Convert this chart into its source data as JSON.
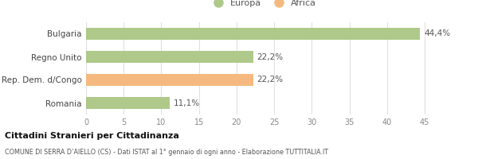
{
  "categories": [
    "Bulgaria",
    "Regno Unito",
    "Rep. Dem. d/Congo",
    "Romania"
  ],
  "values": [
    44.4,
    22.2,
    22.2,
    11.1
  ],
  "colors": [
    "#aec98a",
    "#aec98a",
    "#f5b97f",
    "#aec98a"
  ],
  "labels": [
    "44,4%",
    "22,2%",
    "22,2%",
    "11,1%"
  ],
  "xlim": [
    0,
    47
  ],
  "xticks": [
    0,
    5,
    10,
    15,
    20,
    25,
    30,
    35,
    40,
    45
  ],
  "legend_europa_color": "#aec98a",
  "legend_africa_color": "#f5b97f",
  "title_bold": "Cittadini Stranieri per Cittadinanza",
  "title_sub": "COMUNE DI SERRA D’AIELLO (CS) - Dati ISTAT al 1° gennaio di ogni anno - Elaborazione TUTTITALIA.IT",
  "bar_height": 0.55,
  "background_color": "#ffffff",
  "grid_color": "#e0e0e0",
  "label_fontsize": 7.5,
  "tick_fontsize": 7,
  "ylabel_fontsize": 7.5,
  "legend_fontsize": 8
}
